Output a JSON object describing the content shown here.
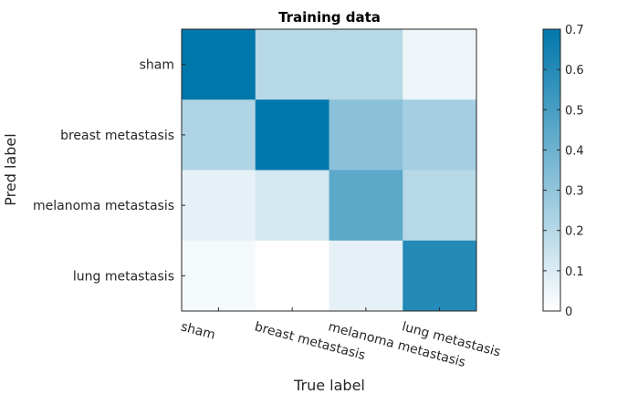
{
  "chart_data": {
    "type": "heatmap",
    "title": "Training data",
    "xlabel": "True label",
    "ylabel": "Pred label",
    "x_categories": [
      "sham",
      "breast metastasis",
      "melanoma metastasis",
      "lung metastasis"
    ],
    "y_categories": [
      "sham",
      "breast metastasis",
      "melanoma metastasis",
      "lung metastasis"
    ],
    "values": [
      [
        0.7,
        0.2,
        0.2,
        0.05
      ],
      [
        0.22,
        0.7,
        0.32,
        0.25
      ],
      [
        0.07,
        0.12,
        0.45,
        0.2
      ],
      [
        0.03,
        0.0,
        0.07,
        0.6
      ]
    ],
    "colorbar": {
      "range": [
        0,
        0.7
      ],
      "ticks": [
        "0",
        "0.1",
        "0.2",
        "0.3",
        "0.4",
        "0.5",
        "0.6",
        "0.7"
      ],
      "low_color": "#ffffff",
      "high_color": "#0077ab"
    }
  }
}
